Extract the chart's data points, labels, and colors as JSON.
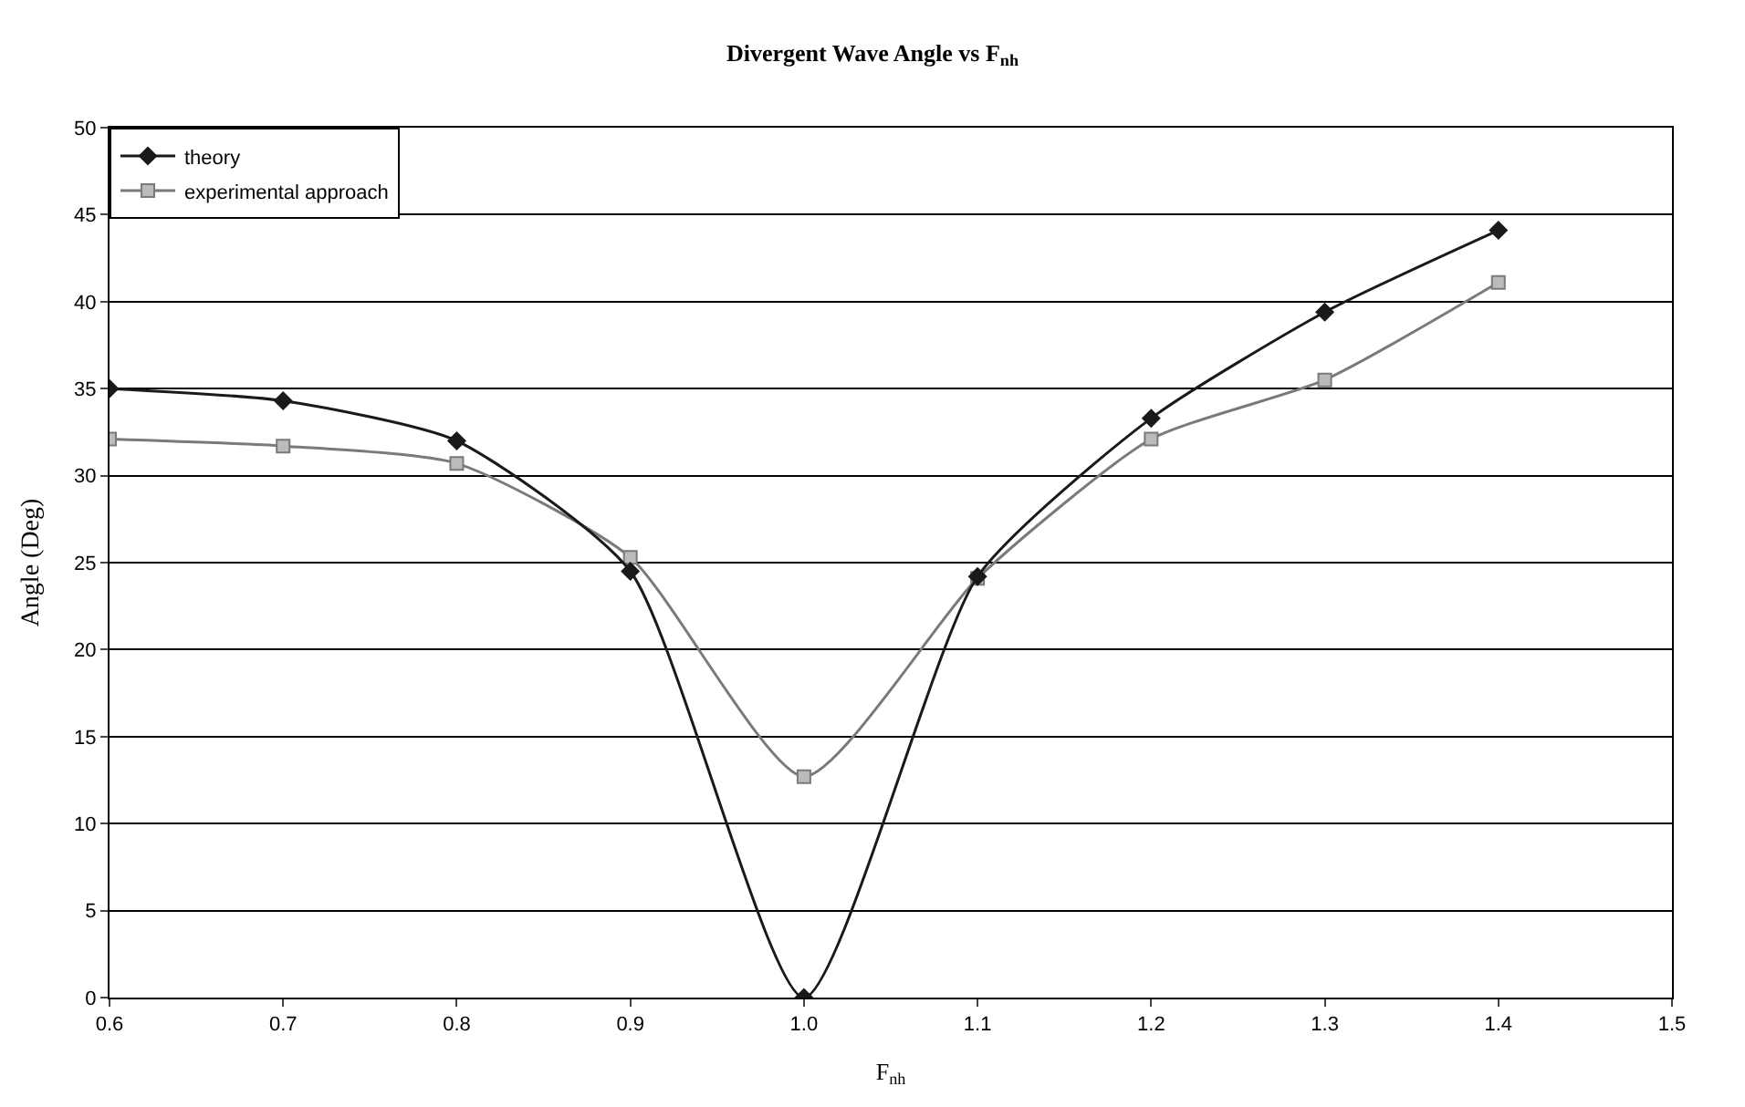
{
  "chart_data": {
    "type": "line",
    "title": "Divergent Wave Angle vs F$_{nh}$",
    "xlabel": "F$_{nh}$",
    "ylabel": "Angle (Deg)",
    "x": [
      0.6,
      0.7,
      0.8,
      0.9,
      1.0,
      1.1,
      1.2,
      1.3,
      1.4
    ],
    "series": [
      {
        "name": "theory",
        "color": "#1a1a1a",
        "marker": "diamond",
        "values": [
          35,
          34.3,
          32,
          24.5,
          0,
          24.2,
          33.3,
          39.4,
          44.1
        ]
      },
      {
        "name": "experimental approach",
        "color": "#7a7a7a",
        "marker": "square",
        "values": [
          32.1,
          31.7,
          30.7,
          25.3,
          12.7,
          24.1,
          32.1,
          35.5,
          41.1
        ]
      }
    ],
    "xlim": [
      0.6,
      1.5
    ],
    "xticks": [
      0.6,
      0.7,
      0.8,
      0.9,
      {
        "value": 1.0,
        "label": "1.0"
      },
      1.1,
      1.2,
      1.3,
      1.4,
      1.5
    ],
    "ylim": [
      0,
      50
    ],
    "yticks": [
      0,
      5,
      10,
      15,
      20,
      25,
      30,
      35,
      40,
      45,
      50
    ],
    "grid": "y",
    "legend": "top left"
  }
}
